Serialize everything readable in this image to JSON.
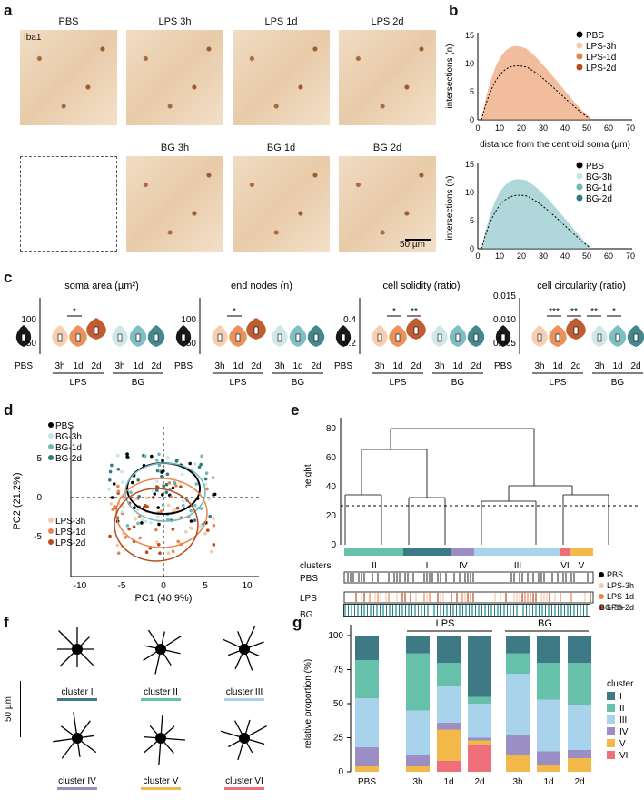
{
  "panels": {
    "a": "a",
    "b": "b",
    "c": "c",
    "d": "d",
    "e": "e",
    "f": "f",
    "g": "g"
  },
  "panel_a": {
    "stain_label": "Iba1",
    "row1": [
      "PBS",
      "LPS 3h",
      "LPS 1d",
      "LPS 2d"
    ],
    "row2": [
      "BG 3h",
      "BG 1d",
      "BG 2d"
    ],
    "scalebar": "50 µm"
  },
  "panel_b": {
    "ylabel": "intersections (n)",
    "xlabel": "distance from the centroid soma (µm)",
    "xticks": [
      "0",
      "10",
      "20",
      "30",
      "40",
      "50",
      "60",
      "70"
    ],
    "yticks": [
      "0",
      "5",
      "10",
      "15"
    ],
    "legend_top": [
      "PBS",
      "LPS-3h",
      "LPS-1d",
      "LPS-2d"
    ],
    "legend_bottom": [
      "PBS",
      "BG-3h",
      "BG-1d",
      "BG-2d"
    ],
    "colors_top": [
      "#000000",
      "#f7c9a8",
      "#e8864a",
      "#b84a1c"
    ],
    "colors_bottom": [
      "#000000",
      "#c9e4e6",
      "#6fb8bd",
      "#2f7b80"
    ]
  },
  "panel_c": {
    "plots": [
      {
        "title": "soma area (µm²)",
        "yticks": [
          "50",
          "100"
        ],
        "sig": "*"
      },
      {
        "title": "end nodes (n)",
        "yticks": [
          "50",
          "100"
        ],
        "sig": "*"
      },
      {
        "title": "cell solidity (ratio)",
        "yticks": [
          "0.2",
          "0.4"
        ],
        "sig": [
          "*",
          "**"
        ]
      },
      {
        "title": "cell circularity (ratio)",
        "yticks": [
          "0.005",
          "0.010",
          "0.015"
        ],
        "sig": [
          "***",
          "**",
          "**",
          "*"
        ]
      }
    ],
    "xlabels": [
      "PBS",
      "3h",
      "1d",
      "2d",
      "3h",
      "1d",
      "2d"
    ],
    "groups": [
      "LPS",
      "BG"
    ]
  },
  "panel_d": {
    "xlabel": "PC1 (40.9%)",
    "ylabel": "PC2 (21.2%)",
    "xticks": [
      "-10",
      "-5",
      "0",
      "5",
      "10"
    ],
    "yticks": [
      "-5",
      "0",
      "5"
    ],
    "legend_top": [
      "PBS",
      "BG-3h",
      "BG-1d",
      "BG-2d"
    ],
    "legend_bottom": [
      "LPS-3h",
      "LPS-1d",
      "LPS-2d"
    ]
  },
  "panel_e": {
    "ylabel": "height",
    "yticks": [
      "0",
      "20",
      "40",
      "60",
      "80"
    ],
    "clusters_label": "clusters",
    "cluster_names": [
      "II",
      "I",
      "IV",
      "III",
      "VI",
      "V"
    ],
    "rows": [
      "PBS",
      "LPS",
      "BG"
    ],
    "legend": [
      "PBS",
      "LPS-3h",
      "LPS-1d",
      "LPS-2d",
      "BG-3h",
      "BG-1d",
      "BG-2d"
    ]
  },
  "panel_f": {
    "scalebar": "50 µm",
    "clusters": [
      "cluster I",
      "cluster II",
      "cluster III",
      "cluster IV",
      "cluster V",
      "cluster VI"
    ],
    "colors": [
      "#3e7a86",
      "#67c0aa",
      "#a9d3ea",
      "#9a8ec4",
      "#f2b94a",
      "#ee6e7a"
    ]
  },
  "panel_g": {
    "ylabel": "relative proportion (%)",
    "legend_title": "cluster",
    "groups": [
      "LPS",
      "BG"
    ]
  },
  "chart_data": [
    {
      "type": "bar",
      "title": "",
      "ylabel": "relative proportion (%)",
      "categories": [
        "PBS",
        "3h",
        "1d",
        "2d",
        "3h",
        "1d",
        "2d"
      ],
      "ylim": [
        0,
        100
      ],
      "series": [
        {
          "name": "VI",
          "values": [
            0,
            0,
            8,
            20,
            0,
            0,
            0
          ]
        },
        {
          "name": "V",
          "values": [
            4,
            4,
            23,
            3,
            12,
            5,
            10
          ]
        },
        {
          "name": "IV",
          "values": [
            14,
            8,
            5,
            2,
            15,
            10,
            6
          ]
        },
        {
          "name": "III",
          "values": [
            36,
            33,
            27,
            25,
            45,
            38,
            33
          ]
        },
        {
          "name": "II",
          "values": [
            28,
            42,
            17,
            5,
            15,
            27,
            31
          ]
        },
        {
          "name": "I",
          "values": [
            18,
            13,
            20,
            45,
            13,
            20,
            20
          ]
        }
      ]
    }
  ]
}
